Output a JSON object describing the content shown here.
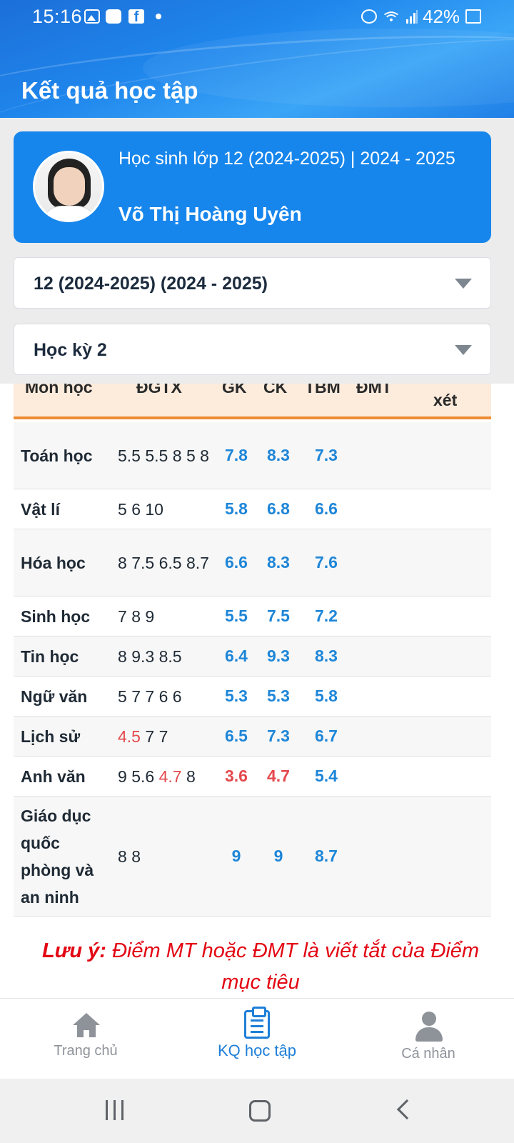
{
  "status_bar": {
    "time": "15:16",
    "battery": "42%"
  },
  "header": {
    "title": "Kết quả học tập"
  },
  "student": {
    "class_line": "Học sinh lớp 12 (2024-2025) | 2024 - 2025",
    "name": "Võ Thị Hoàng Uyên"
  },
  "filters": {
    "year_selected": "12 (2024-2025) (2024 - 2025)",
    "term_selected": "Học kỳ 2"
  },
  "table": {
    "headers": [
      "Môn học",
      "ĐGTX",
      "GK",
      "CK",
      "TBM",
      "ĐMT",
      "xét"
    ],
    "rows": [
      {
        "subject": "Toán học",
        "dgtx": [
          {
            "v": "5.5",
            "c": "dark"
          },
          {
            "v": "5.5",
            "c": "dark"
          },
          {
            "v": "8",
            "c": "dark"
          },
          {
            "v": "5",
            "c": "dark"
          },
          {
            "v": "8",
            "c": "dark"
          }
        ],
        "gk": "7.8",
        "gk_c": "blue",
        "ck": "8.3",
        "ck_c": "blue",
        "tbm": "7.3",
        "tbm_c": "blue"
      },
      {
        "subject": "Vật lí",
        "dgtx": [
          {
            "v": "5",
            "c": "dark"
          },
          {
            "v": "6",
            "c": "dark"
          },
          {
            "v": "10",
            "c": "dark"
          }
        ],
        "gk": "5.8",
        "gk_c": "blue",
        "ck": "6.8",
        "ck_c": "blue",
        "tbm": "6.6",
        "tbm_c": "blue"
      },
      {
        "subject": "Hóa học",
        "dgtx": [
          {
            "v": "8",
            "c": "dark"
          },
          {
            "v": "7.5",
            "c": "dark"
          },
          {
            "v": "6.5",
            "c": "dark"
          },
          {
            "v": "8.7",
            "c": "dark"
          }
        ],
        "gk": "6.6",
        "gk_c": "blue",
        "ck": "8.3",
        "ck_c": "blue",
        "tbm": "7.6",
        "tbm_c": "blue"
      },
      {
        "subject": "Sinh học",
        "dgtx": [
          {
            "v": "7",
            "c": "dark"
          },
          {
            "v": "8",
            "c": "dark"
          },
          {
            "v": "9",
            "c": "dark"
          }
        ],
        "gk": "5.5",
        "gk_c": "blue",
        "ck": "7.5",
        "ck_c": "blue",
        "tbm": "7.2",
        "tbm_c": "blue"
      },
      {
        "subject": "Tin học",
        "dgtx": [
          {
            "v": "8",
            "c": "dark"
          },
          {
            "v": "9.3",
            "c": "dark"
          },
          {
            "v": "8.5",
            "c": "dark"
          }
        ],
        "gk": "6.4",
        "gk_c": "blue",
        "ck": "9.3",
        "ck_c": "blue",
        "tbm": "8.3",
        "tbm_c": "blue"
      },
      {
        "subject": "Ngữ văn",
        "dgtx": [
          {
            "v": "5",
            "c": "dark"
          },
          {
            "v": "7",
            "c": "dark"
          },
          {
            "v": "7",
            "c": "dark"
          },
          {
            "v": "6",
            "c": "dark"
          },
          {
            "v": "6",
            "c": "dark"
          }
        ],
        "gk": "5.3",
        "gk_c": "blue",
        "ck": "5.3",
        "ck_c": "blue",
        "tbm": "5.8",
        "tbm_c": "blue"
      },
      {
        "subject": "Lịch sử",
        "dgtx": [
          {
            "v": "4.5",
            "c": "red"
          },
          {
            "v": "7",
            "c": "dark"
          },
          {
            "v": "7",
            "c": "dark"
          }
        ],
        "gk": "6.5",
        "gk_c": "blue",
        "ck": "7.3",
        "ck_c": "blue",
        "tbm": "6.7",
        "tbm_c": "blue"
      },
      {
        "subject": "Anh văn",
        "dgtx": [
          {
            "v": "9",
            "c": "dark"
          },
          {
            "v": "5.6",
            "c": "dark"
          },
          {
            "v": "4.7",
            "c": "red"
          },
          {
            "v": "8",
            "c": "dark"
          }
        ],
        "gk": "3.6",
        "gk_c": "red",
        "ck": "4.7",
        "ck_c": "red",
        "tbm": "5.4",
        "tbm_c": "blue"
      },
      {
        "subject": "Giáo dục quốc phòng và an ninh",
        "dgtx": [
          {
            "v": "8",
            "c": "dark"
          },
          {
            "v": "8",
            "c": "dark"
          }
        ],
        "gk": "9",
        "gk_c": "blue",
        "ck": "9",
        "ck_c": "blue",
        "tbm": "8.7",
        "tbm_c": "blue"
      }
    ]
  },
  "note": {
    "label": "Lưu ý:",
    "text": " Điểm MT hoặc ĐMT là viết tắt của Điểm mục tiêu"
  },
  "bottom_nav": {
    "home": "Trang chủ",
    "results": "KQ học tập",
    "profile": "Cá nhân"
  },
  "colors": {
    "primary": "#1786ec",
    "score_blue": "#1e86d8",
    "score_red": "#e5484d",
    "header_accent": "#ee8c33"
  }
}
